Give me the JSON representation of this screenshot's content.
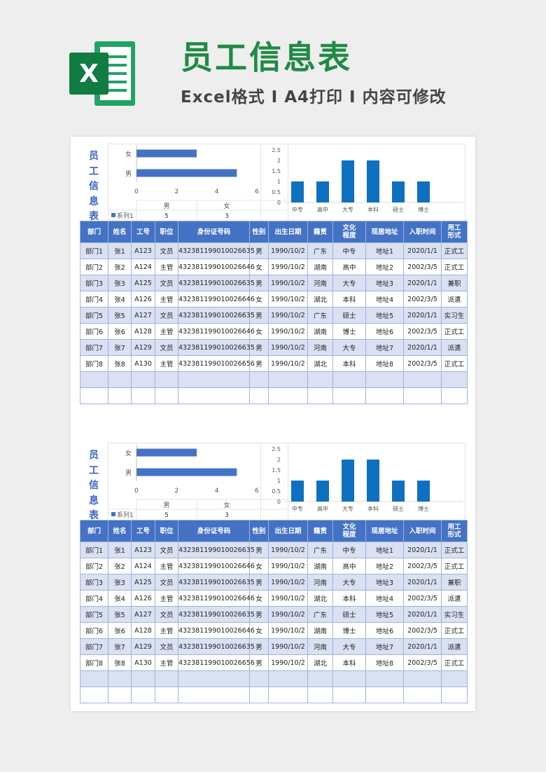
{
  "header": {
    "title": "员工信息表",
    "subtitle": "Excel格式 I A4打印 I 内容可修改",
    "logo_letter": "X"
  },
  "colors": {
    "accent_green": "#1f8a45",
    "table_header": "#4472c4",
    "row_band": "#d9e1f2",
    "bar_blue": "#4472c4",
    "bar_blue2": "#0e70c0",
    "title_blue": "#3a62c8"
  },
  "sheet": {
    "vertical_title": [
      "员",
      "工",
      "信",
      "息",
      "表"
    ],
    "columns": [
      "部门",
      "姓名",
      "工号",
      "职位",
      "身份证号码",
      "性别",
      "出生日期",
      "籍贯",
      "文化\n程度",
      "现居地址",
      "入职时间",
      "用工\n形式"
    ],
    "rows": [
      [
        "部门1",
        "张1",
        "A123",
        "文员",
        "432381199010026635",
        "男",
        "1990/10/2",
        "广东",
        "中专",
        "地址1",
        "2020/1/1",
        "正式工"
      ],
      [
        "部门2",
        "张2",
        "A124",
        "主管",
        "432381199010026646",
        "女",
        "1990/10/2",
        "湖南",
        "高中",
        "地址2",
        "2002/3/5",
        "正式工"
      ],
      [
        "部门3",
        "张3",
        "A125",
        "文员",
        "432381199010026635",
        "男",
        "1990/10/2",
        "河南",
        "大专",
        "地址3",
        "2020/1/1",
        "兼职"
      ],
      [
        "部门4",
        "张4",
        "A126",
        "主管",
        "432381199010026646",
        "女",
        "1990/10/2",
        "湖北",
        "本科",
        "地址4",
        "2002/3/5",
        "派遣"
      ],
      [
        "部门5",
        "张5",
        "A127",
        "文员",
        "432381199010026635",
        "男",
        "1990/10/2",
        "广东",
        "硕士",
        "地址5",
        "2020/1/1",
        "实习生"
      ],
      [
        "部门6",
        "张6",
        "A128",
        "主管",
        "432381199010026646",
        "女",
        "1990/10/2",
        "湖南",
        "博士",
        "地址6",
        "2002/3/5",
        "正式工"
      ],
      [
        "部门7",
        "张7",
        "A129",
        "文员",
        "432381199010026635",
        "男",
        "1990/10/2",
        "河南",
        "大专",
        "地址7",
        "2020/1/1",
        "派遣"
      ],
      [
        "部门8",
        "张8",
        "A130",
        "主管",
        "432381199010026656",
        "男",
        "1990/10/2",
        "湖北",
        "本科",
        "地址8",
        "2002/3/5",
        "正式工"
      ]
    ],
    "empty_rows": 2
  },
  "chart_data": [
    {
      "type": "bar",
      "orientation": "horizontal",
      "categories": [
        "女",
        "男"
      ],
      "values": [
        3,
        5
      ],
      "xlim": [
        0,
        6
      ],
      "xticks": [
        "0",
        "2",
        "4",
        "6"
      ],
      "legend": "系列1",
      "table_header": [
        "男",
        "女"
      ],
      "table_values": [
        "5",
        "3"
      ],
      "color": "#4472c4"
    },
    {
      "type": "bar",
      "categories": [
        "中专",
        "高中",
        "大专",
        "本科",
        "硕士",
        "博士"
      ],
      "values": [
        1,
        1,
        2,
        2,
        1,
        1
      ],
      "ylim": [
        0,
        2.5
      ],
      "yticks": [
        "0",
        "0.5",
        "1",
        "1.5",
        "2",
        "2.5"
      ],
      "color": "#0e70c0"
    }
  ]
}
